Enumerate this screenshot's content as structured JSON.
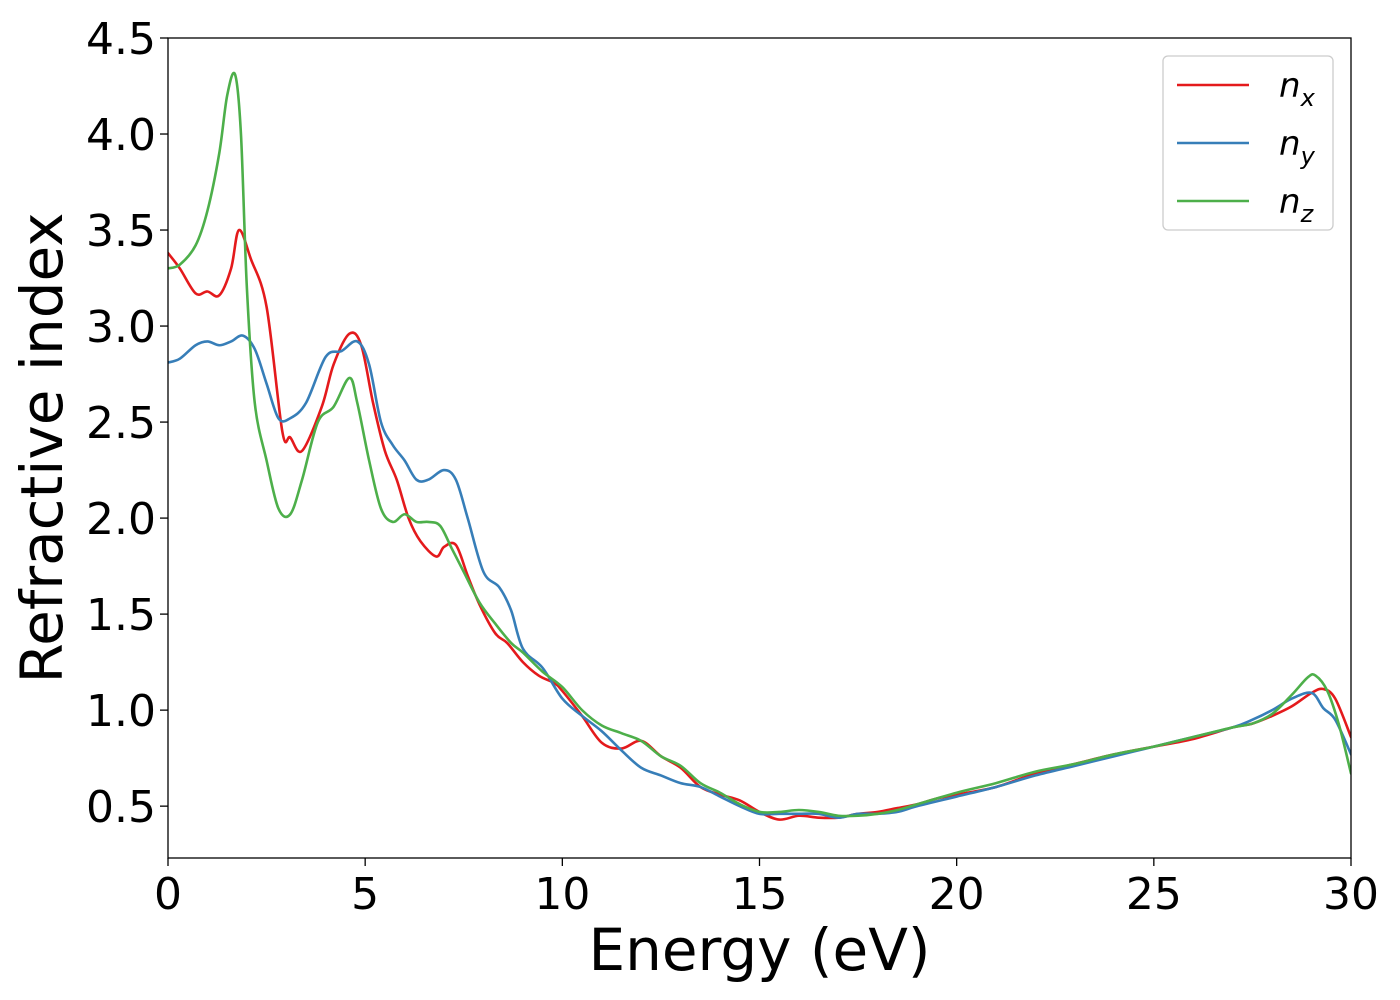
{
  "chart_data": {
    "type": "line",
    "title": "",
    "xlabel": "Energy (eV)",
    "ylabel": "Refractive index",
    "xlim": [
      0,
      30
    ],
    "ylim": [
      0.23,
      4.5
    ],
    "xticks": [
      "0",
      "5",
      "10",
      "15",
      "20",
      "25",
      "30"
    ],
    "yticks": [
      "0.5",
      "1.0",
      "1.5",
      "2.0",
      "2.5",
      "3.0",
      "3.5",
      "4.0",
      "4.5"
    ],
    "grid": false,
    "legend_position": "top-right",
    "series": [
      {
        "name": "n",
        "subscript": "x",
        "color": "#e41a1c",
        "x": [
          0,
          0.3,
          0.7,
          1.0,
          1.3,
          1.6,
          1.8,
          2.1,
          2.5,
          2.9,
          3.1,
          3.4,
          3.9,
          4.2,
          4.6,
          4.9,
          5.2,
          5.5,
          5.8,
          6.1,
          6.4,
          6.8,
          7.0,
          7.3,
          7.6,
          7.9,
          8.3,
          8.6,
          9.0,
          9.4,
          9.8,
          10.0,
          10.5,
          11.0,
          11.5,
          12.0,
          12.5,
          13.0,
          13.5,
          14.0,
          14.5,
          15.0,
          15.5,
          16.0,
          16.5,
          17.0,
          17.5,
          18.0,
          18.5,
          19.0,
          19.5,
          20.0,
          21.0,
          22.0,
          23.0,
          24.0,
          25.0,
          26.0,
          27.0,
          27.5,
          28.0,
          28.5,
          29.0,
          29.3,
          29.6,
          30.0
        ],
        "y": [
          3.38,
          3.3,
          3.17,
          3.18,
          3.16,
          3.3,
          3.5,
          3.35,
          3.1,
          2.45,
          2.42,
          2.35,
          2.58,
          2.8,
          2.96,
          2.9,
          2.6,
          2.35,
          2.2,
          2.0,
          1.88,
          1.8,
          1.85,
          1.86,
          1.7,
          1.55,
          1.4,
          1.35,
          1.25,
          1.18,
          1.14,
          1.1,
          0.97,
          0.83,
          0.8,
          0.84,
          0.76,
          0.7,
          0.6,
          0.56,
          0.53,
          0.47,
          0.43,
          0.45,
          0.44,
          0.44,
          0.46,
          0.47,
          0.49,
          0.51,
          0.54,
          0.56,
          0.6,
          0.67,
          0.72,
          0.77,
          0.81,
          0.85,
          0.91,
          0.93,
          0.97,
          1.02,
          1.09,
          1.11,
          1.06,
          0.86
        ]
      },
      {
        "name": "n",
        "subscript": "y",
        "color": "#377eb8",
        "x": [
          0,
          0.3,
          0.7,
          1.0,
          1.3,
          1.6,
          1.9,
          2.2,
          2.5,
          2.8,
          3.1,
          3.5,
          4.0,
          4.4,
          4.8,
          5.1,
          5.4,
          5.7,
          6.0,
          6.3,
          6.6,
          7.0,
          7.3,
          7.6,
          8.0,
          8.4,
          8.7,
          9.0,
          9.5,
          10.0,
          10.5,
          11.0,
          11.5,
          12.0,
          12.5,
          13.0,
          13.5,
          14.0,
          14.5,
          15.0,
          15.5,
          16.0,
          16.5,
          17.0,
          17.5,
          18.0,
          18.5,
          19.0,
          20.0,
          21.0,
          22.0,
          23.0,
          24.0,
          25.0,
          26.0,
          27.0,
          27.5,
          28.0,
          28.5,
          29.0,
          29.3,
          29.6,
          30.0
        ],
        "y": [
          2.81,
          2.83,
          2.9,
          2.92,
          2.9,
          2.92,
          2.95,
          2.88,
          2.7,
          2.52,
          2.52,
          2.6,
          2.84,
          2.87,
          2.92,
          2.8,
          2.5,
          2.38,
          2.3,
          2.2,
          2.2,
          2.25,
          2.2,
          2.0,
          1.72,
          1.64,
          1.52,
          1.32,
          1.22,
          1.06,
          0.97,
          0.89,
          0.79,
          0.7,
          0.66,
          0.62,
          0.6,
          0.55,
          0.5,
          0.46,
          0.46,
          0.46,
          0.46,
          0.44,
          0.46,
          0.46,
          0.47,
          0.5,
          0.55,
          0.6,
          0.66,
          0.71,
          0.76,
          0.81,
          0.86,
          0.91,
          0.95,
          1.0,
          1.06,
          1.09,
          1.01,
          0.95,
          0.77
        ]
      },
      {
        "name": "n",
        "subscript": "z",
        "color": "#4daf4a",
        "x": [
          0,
          0.3,
          0.7,
          1.0,
          1.3,
          1.5,
          1.7,
          1.85,
          2.0,
          2.2,
          2.5,
          2.8,
          3.1,
          3.4,
          3.8,
          4.2,
          4.6,
          4.8,
          5.1,
          5.4,
          5.7,
          6.0,
          6.3,
          6.6,
          6.9,
          7.2,
          7.5,
          7.9,
          8.3,
          8.7,
          9.0,
          9.5,
          10.0,
          10.5,
          11.0,
          11.5,
          12.0,
          12.5,
          13.0,
          13.5,
          14.0,
          14.5,
          15.0,
          15.5,
          16.0,
          16.5,
          17.0,
          17.5,
          18.0,
          18.5,
          19.0,
          20.0,
          21.0,
          22.0,
          23.0,
          24.0,
          25.0,
          26.0,
          27.0,
          27.5,
          28.0,
          28.5,
          28.9,
          29.1,
          29.4,
          29.7,
          30.0
        ],
        "y": [
          3.3,
          3.32,
          3.42,
          3.6,
          3.9,
          4.2,
          4.31,
          4.0,
          3.2,
          2.6,
          2.3,
          2.05,
          2.02,
          2.2,
          2.5,
          2.58,
          2.73,
          2.6,
          2.3,
          2.05,
          1.98,
          2.02,
          1.98,
          1.98,
          1.96,
          1.84,
          1.72,
          1.56,
          1.45,
          1.35,
          1.3,
          1.2,
          1.12,
          1.0,
          0.92,
          0.88,
          0.84,
          0.76,
          0.71,
          0.62,
          0.57,
          0.51,
          0.47,
          0.47,
          0.48,
          0.47,
          0.45,
          0.45,
          0.46,
          0.48,
          0.51,
          0.57,
          0.62,
          0.68,
          0.72,
          0.77,
          0.81,
          0.86,
          0.91,
          0.93,
          0.98,
          1.08,
          1.17,
          1.18,
          1.1,
          0.92,
          0.67
        ]
      }
    ]
  }
}
